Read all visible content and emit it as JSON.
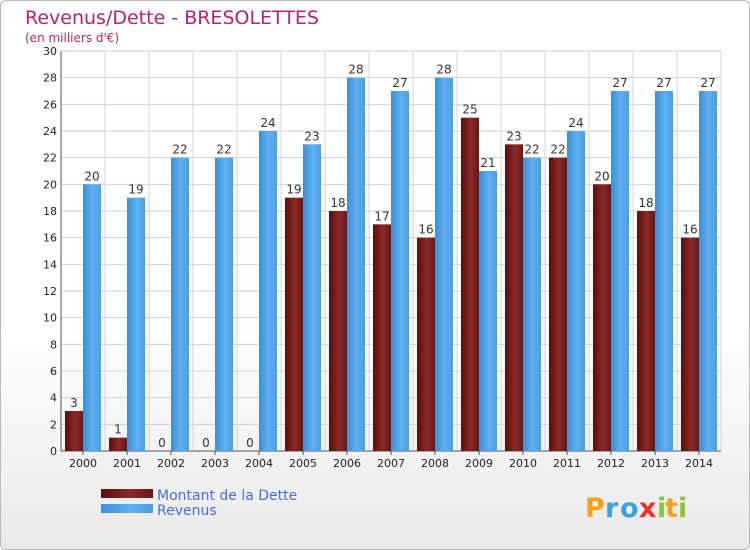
{
  "chart_data": {
    "type": "bar",
    "title": "Revenus/Dette - BRESOLETTES",
    "subtitle": "(en milliers d'€)",
    "categories": [
      "2000",
      "2001",
      "2002",
      "2003",
      "2004",
      "2005",
      "2006",
      "2007",
      "2008",
      "2009",
      "2010",
      "2011",
      "2012",
      "2013",
      "2014"
    ],
    "series": [
      {
        "name": "Montant de la Dette",
        "color": "#7a1a1a",
        "values": [
          3,
          1,
          0,
          0,
          0,
          19,
          18,
          17,
          16,
          25,
          23,
          22,
          20,
          18,
          16
        ]
      },
      {
        "name": "Revenus",
        "color": "#4d9fe3",
        "values": [
          20,
          19,
          22,
          22,
          24,
          23,
          28,
          27,
          28,
          21,
          22,
          24,
          27,
          27,
          27
        ]
      }
    ],
    "ylim": [
      0,
      30
    ],
    "yticks": [
      0,
      2,
      4,
      6,
      8,
      10,
      12,
      14,
      16,
      18,
      20,
      22,
      24,
      26,
      28,
      30
    ],
    "grid": true,
    "legend_position": "bottom-left",
    "logo": {
      "text": "Proxiti",
      "letters": [
        "P",
        "r",
        "o",
        "x",
        "i",
        "t",
        "i"
      ],
      "colors": [
        "#f3a21c",
        "#3aa3d8",
        "#3aa3d8",
        "#e8312a",
        "#8cc63e",
        "#f3a21c",
        "#8cc63e"
      ]
    }
  }
}
